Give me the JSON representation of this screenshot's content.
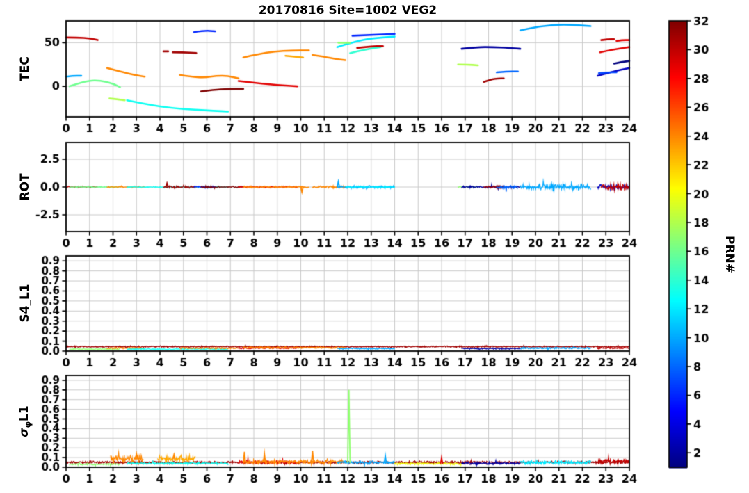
{
  "title": "20170816 Site=1002 VEG2",
  "x_axis": {
    "min": 0,
    "max": 24,
    "ticks": [
      0,
      1,
      2,
      3,
      4,
      5,
      6,
      7,
      8,
      9,
      10,
      11,
      12,
      13,
      14,
      15,
      16,
      17,
      18,
      19,
      20,
      21,
      22,
      23,
      24
    ]
  },
  "colorbar": {
    "label": "PRN#",
    "vmin": 1,
    "vmax": 32,
    "ticks": [
      2,
      4,
      6,
      8,
      10,
      12,
      14,
      16,
      18,
      20,
      22,
      24,
      26,
      28,
      30,
      32
    ]
  },
  "chart_data": [
    {
      "name": "TEC",
      "type": "line",
      "ylabel": "TEC",
      "ylim": [
        -35,
        75
      ],
      "yticks": [
        {
          "v": 0,
          "label": "0"
        },
        {
          "v": 50,
          "label": "50"
        }
      ],
      "series": [
        {
          "prn": 30,
          "x": [
            0,
            0.5,
            1.0,
            1.35
          ],
          "y": [
            56,
            56,
            55,
            53
          ]
        },
        {
          "prn": 10,
          "x": [
            0,
            0.3,
            0.65
          ],
          "y": [
            11,
            12,
            12
          ]
        },
        {
          "prn": 16,
          "x": [
            0.15,
            0.8,
            1.4,
            2.0,
            2.3
          ],
          "y": [
            0,
            6,
            7,
            3,
            -1
          ]
        },
        {
          "prn": 24,
          "x": [
            1.75,
            2.3,
            2.9,
            3.35
          ],
          "y": [
            21,
            17,
            13,
            11
          ]
        },
        {
          "prn": 18,
          "x": [
            1.85,
            2.2,
            2.5
          ],
          "y": [
            -14,
            -15,
            -16
          ]
        },
        {
          "prn": 13,
          "x": [
            2.6,
            3.5,
            4.5,
            5.5,
            6.3,
            6.9
          ],
          "y": [
            -16,
            -21,
            -25,
            -27,
            -28,
            -29
          ]
        },
        {
          "prn": 31,
          "x": [
            4.15,
            4.35
          ],
          "y": [
            40,
            40
          ]
        },
        {
          "prn": 31,
          "x": [
            4.55,
            5.0,
            5.55
          ],
          "y": [
            39,
            39,
            38
          ]
        },
        {
          "prn": 6,
          "x": [
            5.45,
            5.9,
            6.35
          ],
          "y": [
            62,
            64,
            63
          ]
        },
        {
          "prn": 24,
          "x": [
            4.85,
            5.3,
            5.9,
            6.4,
            6.9,
            7.35
          ],
          "y": [
            13,
            11,
            10,
            12,
            12,
            9
          ]
        },
        {
          "prn": 32,
          "x": [
            5.75,
            6.3,
            6.9,
            7.55
          ],
          "y": [
            -6,
            -4,
            -3,
            -3
          ]
        },
        {
          "prn": 29,
          "x": [
            7.35,
            8.0,
            8.7,
            9.3,
            9.85
          ],
          "y": [
            6,
            4,
            2,
            1,
            0
          ]
        },
        {
          "prn": 24,
          "x": [
            7.55,
            8.2,
            8.9,
            9.6,
            10.35
          ],
          "y": [
            33,
            37,
            40,
            41,
            41
          ]
        },
        {
          "prn": 23,
          "x": [
            9.35,
            9.7,
            10.1
          ],
          "y": [
            35,
            34,
            33
          ]
        },
        {
          "prn": 24,
          "x": [
            10.5,
            11.0,
            11.5,
            11.9
          ],
          "y": [
            36,
            34,
            31,
            30
          ]
        },
        {
          "prn": 12,
          "x": [
            11.55,
            12.3,
            13.0,
            14.0
          ],
          "y": [
            45,
            51,
            55,
            57
          ]
        },
        {
          "prn": 6,
          "x": [
            12.2,
            13.0,
            14.0
          ],
          "y": [
            58,
            59,
            60
          ]
        },
        {
          "prn": 17,
          "x": [
            11.6,
            11.85,
            12.1
          ],
          "y": [
            50,
            50,
            50
          ]
        },
        {
          "prn": 14,
          "x": [
            12.1,
            12.7,
            13.4
          ],
          "y": [
            38,
            42,
            45
          ]
        },
        {
          "prn": 30,
          "x": [
            12.4,
            13.0,
            13.5
          ],
          "y": [
            44,
            46,
            46
          ]
        },
        {
          "prn": 2,
          "x": [
            16.85,
            17.5,
            18.2,
            18.9,
            19.35
          ],
          "y": [
            43,
            45,
            45,
            44,
            43
          ]
        },
        {
          "prn": 18,
          "x": [
            16.7,
            17.1,
            17.55
          ],
          "y": [
            25,
            25,
            24
          ]
        },
        {
          "prn": 31,
          "x": [
            17.8,
            18.1,
            18.4,
            18.65
          ],
          "y": [
            5,
            8,
            9,
            9
          ]
        },
        {
          "prn": 8,
          "x": [
            18.35,
            18.8,
            19.25
          ],
          "y": [
            16,
            17,
            17
          ]
        },
        {
          "prn": 10,
          "x": [
            19.35,
            20.0,
            20.7,
            21.2,
            21.8,
            22.35
          ],
          "y": [
            64,
            68,
            70,
            71,
            70,
            69
          ]
        },
        {
          "prn": 3,
          "x": [
            22.65,
            23.3,
            24
          ],
          "y": [
            12,
            17,
            21
          ]
        },
        {
          "prn": 1,
          "x": [
            23.35,
            23.7,
            24
          ],
          "y": [
            26,
            28,
            29
          ]
        },
        {
          "prn": 7,
          "x": [
            22.7,
            23.1,
            23.45
          ],
          "y": [
            15,
            16,
            16
          ]
        },
        {
          "prn": 30,
          "x": [
            22.8,
            23.1,
            23.35
          ],
          "y": [
            53,
            54,
            54
          ]
        },
        {
          "prn": 29,
          "x": [
            23.45,
            23.7,
            24
          ],
          "y": [
            52,
            53,
            53
          ]
        },
        {
          "prn": 29,
          "x": [
            22.75,
            23.3,
            24
          ],
          "y": [
            39,
            42,
            45
          ]
        }
      ]
    },
    {
      "name": "ROT",
      "type": "line",
      "ylabel": "ROT",
      "ylim": [
        -4,
        4
      ],
      "yticks": [
        {
          "v": -2.5,
          "label": "-2.5"
        },
        {
          "v": 0,
          "label": "0.0"
        },
        {
          "v": 2.5,
          "label": "2.5"
        }
      ],
      "noise_series": [
        {
          "prn": 30,
          "x": [
            0,
            1.35
          ],
          "base": 0,
          "amp": 0.08
        },
        {
          "prn": 16,
          "x": [
            0.15,
            2.3
          ],
          "base": 0,
          "amp": 0.06
        },
        {
          "prn": 24,
          "x": [
            1.75,
            3.35
          ],
          "base": 0,
          "amp": 0.08
        },
        {
          "prn": 13,
          "x": [
            2.6,
            6.9
          ],
          "base": 0,
          "amp": 0.05
        },
        {
          "prn": 31,
          "x": [
            4.15,
            5.55
          ],
          "base": 0,
          "amp": 0.12
        },
        {
          "prn": 6,
          "x": [
            5.45,
            6.35
          ],
          "base": 0,
          "amp": 0.08
        },
        {
          "prn": 32,
          "x": [
            5.75,
            7.55
          ],
          "base": 0,
          "amp": 0.1
        },
        {
          "prn": 29,
          "x": [
            7.35,
            9.85
          ],
          "base": 0,
          "amp": 0.08
        },
        {
          "prn": 24,
          "x": [
            7.55,
            10.35
          ],
          "base": 0,
          "amp": 0.1
        },
        {
          "prn": 24,
          "x": [
            10.5,
            11.9
          ],
          "base": 0,
          "amp": 0.12
        },
        {
          "prn": 10,
          "x": [
            11.55,
            14
          ],
          "base": 0,
          "amp": 0.15
        },
        {
          "prn": 12,
          "x": [
            11.9,
            14
          ],
          "base": 0,
          "amp": 0.1
        },
        {
          "prn": 17,
          "x": [
            16.7,
            17.55
          ],
          "base": 0,
          "amp": 0.06
        },
        {
          "prn": 2,
          "x": [
            16.85,
            19.35
          ],
          "base": 0,
          "amp": 0.1
        },
        {
          "prn": 31,
          "x": [
            17.8,
            18.65
          ],
          "base": 0,
          "amp": 0.15
        },
        {
          "prn": 8,
          "x": [
            18.35,
            19.25
          ],
          "base": 0,
          "amp": 0.2
        },
        {
          "prn": 10,
          "x": [
            19.35,
            22.35
          ],
          "base": 0,
          "amp": 0.3
        },
        {
          "prn": 3,
          "x": [
            22.65,
            24
          ],
          "base": 0,
          "amp": 0.25
        },
        {
          "prn": 30,
          "x": [
            22.8,
            24
          ],
          "base": 0,
          "amp": 0.3
        }
      ],
      "spikes": [
        {
          "prn": 10,
          "x": 11.6,
          "h": 0.5,
          "base": 0,
          "w": 0.05
        },
        {
          "prn": 24,
          "x": 10.05,
          "h": -0.45,
          "base": 0,
          "w": 0.05
        },
        {
          "prn": 31,
          "x": 4.3,
          "h": 0.35,
          "base": 0,
          "w": 0.05
        }
      ]
    },
    {
      "name": "S4_L1",
      "type": "line",
      "ylabel": "S4_L1",
      "ylim": [
        0,
        0.95
      ],
      "yticks": [
        {
          "v": 0,
          "label": "0.0"
        },
        {
          "v": 0.1,
          "label": "0.1"
        },
        {
          "v": 0.2,
          "label": "0.2"
        },
        {
          "v": 0.3,
          "label": "0.3"
        },
        {
          "v": 0.4,
          "label": "0.4"
        },
        {
          "v": 0.5,
          "label": "0.5"
        },
        {
          "v": 0.6,
          "label": "0.6"
        },
        {
          "v": 0.7,
          "label": "0.7"
        },
        {
          "v": 0.8,
          "label": "0.8"
        },
        {
          "v": 0.9,
          "label": "0.9"
        }
      ],
      "noise_series": [
        {
          "prn": 31,
          "x": [
            0,
            24
          ],
          "base": 0.045,
          "amp": 0.008
        },
        {
          "prn": 17,
          "x": [
            0.15,
            2.3
          ],
          "base": 0.02,
          "amp": 0.006
        },
        {
          "prn": 24,
          "x": [
            1.75,
            3.35
          ],
          "base": 0.03,
          "amp": 0.008
        },
        {
          "prn": 13,
          "x": [
            2.6,
            6.9
          ],
          "base": 0.02,
          "amp": 0.006
        },
        {
          "prn": 24,
          "x": [
            4.85,
            7.35
          ],
          "base": 0.03,
          "amp": 0.008
        },
        {
          "prn": 29,
          "x": [
            7.35,
            9.85
          ],
          "base": 0.03,
          "amp": 0.008
        },
        {
          "prn": 24,
          "x": [
            7.55,
            11.9
          ],
          "base": 0.035,
          "amp": 0.01
        },
        {
          "prn": 10,
          "x": [
            11.55,
            14
          ],
          "base": 0.025,
          "amp": 0.008
        },
        {
          "prn": 2,
          "x": [
            16.85,
            19.35
          ],
          "base": 0.025,
          "amp": 0.008
        },
        {
          "prn": 10,
          "x": [
            19.35,
            22.35
          ],
          "base": 0.03,
          "amp": 0.01
        },
        {
          "prn": 30,
          "x": [
            22.65,
            24
          ],
          "base": 0.03,
          "amp": 0.01
        }
      ]
    },
    {
      "name": "sigma_phi_L1",
      "type": "line",
      "ylabel": "σφL1",
      "ylabel_parts": {
        "pre": "σ",
        "sub": "φ",
        "post": "L1"
      },
      "ylim": [
        0,
        0.95
      ],
      "yticks": [
        {
          "v": 0,
          "label": "0.0"
        },
        {
          "v": 0.1,
          "label": "0.1"
        },
        {
          "v": 0.2,
          "label": "0.2"
        },
        {
          "v": 0.3,
          "label": "0.3"
        },
        {
          "v": 0.4,
          "label": "0.4"
        },
        {
          "v": 0.5,
          "label": "0.5"
        },
        {
          "v": 0.6,
          "label": "0.6"
        },
        {
          "v": 0.7,
          "label": "0.7"
        },
        {
          "v": 0.8,
          "label": "0.8"
        },
        {
          "v": 0.9,
          "label": "0.9"
        }
      ],
      "noise_series": [
        {
          "prn": 31,
          "x": [
            0,
            24
          ],
          "base": 0.05,
          "amp": 0.015
        },
        {
          "prn": 17,
          "x": [
            0.15,
            2.3
          ],
          "base": 0.03,
          "amp": 0.01
        },
        {
          "prn": 24,
          "x": [
            1.9,
            3.3
          ],
          "base": 0.09,
          "amp": 0.04
        },
        {
          "prn": 23,
          "x": [
            3.9,
            5.5
          ],
          "base": 0.09,
          "amp": 0.04
        },
        {
          "prn": 13,
          "x": [
            2.6,
            6.9
          ],
          "base": 0.04,
          "amp": 0.012
        },
        {
          "prn": 29,
          "x": [
            7.35,
            9.85
          ],
          "base": 0.05,
          "amp": 0.02
        },
        {
          "prn": 24,
          "x": [
            7.55,
            11.9
          ],
          "base": 0.055,
          "amp": 0.025
        },
        {
          "prn": 10,
          "x": [
            11.55,
            14
          ],
          "base": 0.05,
          "amp": 0.02
        },
        {
          "prn": 20,
          "x": [
            14,
            16.85
          ],
          "base": 0.035,
          "amp": 0.012
        },
        {
          "prn": 2,
          "x": [
            16.85,
            19.35
          ],
          "base": 0.04,
          "amp": 0.015
        },
        {
          "prn": 12,
          "x": [
            19.35,
            22.35
          ],
          "base": 0.05,
          "amp": 0.02
        },
        {
          "prn": 30,
          "x": [
            22.65,
            24
          ],
          "base": 0.06,
          "amp": 0.025
        }
      ],
      "spikes": [
        {
          "prn": 17,
          "x": 12.05,
          "h": 0.8,
          "base": 0.05,
          "w": 0.05
        },
        {
          "prn": 24,
          "x": 3.0,
          "h": 0.14,
          "base": 0.09,
          "w": 0.04
        },
        {
          "prn": 24,
          "x": 4.6,
          "h": 0.13,
          "base": 0.09,
          "w": 0.04
        },
        {
          "prn": 24,
          "x": 7.6,
          "h": 0.16,
          "base": 0.055,
          "w": 0.04
        },
        {
          "prn": 24,
          "x": 8.45,
          "h": 0.14,
          "base": 0.055,
          "w": 0.04
        },
        {
          "prn": 24,
          "x": 10.5,
          "h": 0.17,
          "base": 0.055,
          "w": 0.04
        },
        {
          "prn": 10,
          "x": 13.6,
          "h": 0.12,
          "base": 0.05,
          "w": 0.04
        },
        {
          "prn": 29,
          "x": 16.0,
          "h": 0.1,
          "base": 0.04,
          "w": 0.04
        }
      ]
    }
  ]
}
